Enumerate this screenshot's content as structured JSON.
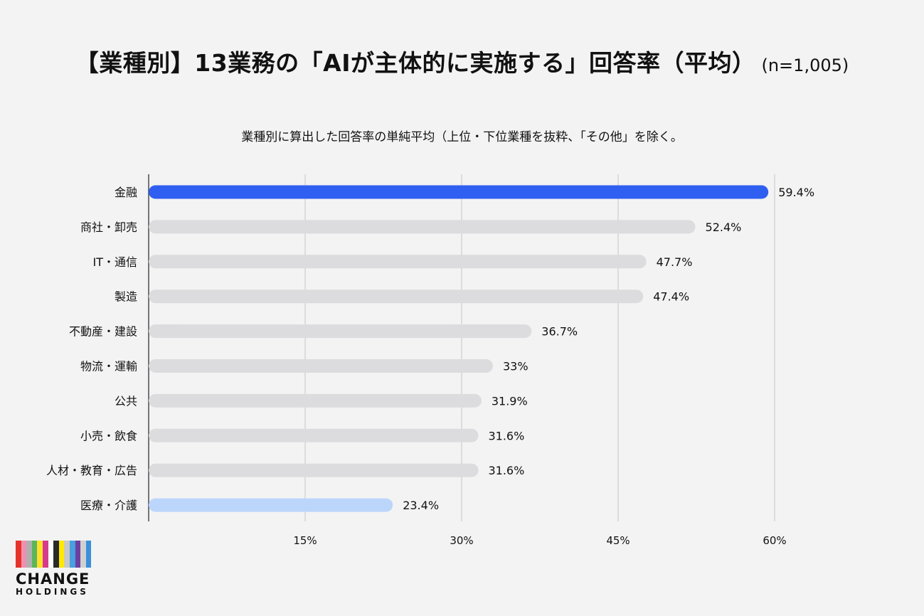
{
  "chart_data": {
    "type": "bar",
    "orientation": "horizontal",
    "title": "【業種別】13業務の「AIが主体的に実施する」回答率（平均）",
    "title_note": "(n=1,005)",
    "subtitle": "業種別に算出した回答率の単純平均（上位・下位業種を抜粋、「その他」を除く。",
    "categories": [
      "金融",
      "商社・卸売",
      "IT・通信",
      "製造",
      "不動産・建設",
      "物流・運輸",
      "公共",
      "小売・飲食",
      "人材・教育・広告",
      "医療・介護"
    ],
    "values": [
      59.4,
      52.4,
      47.7,
      47.4,
      36.7,
      33,
      31.9,
      31.6,
      31.6,
      23.4
    ],
    "value_labels": [
      "59.4%",
      "52.4%",
      "47.7%",
      "47.4%",
      "36.7%",
      "33%",
      "31.9%",
      "31.6%",
      "31.6%",
      "23.4%"
    ],
    "bar_colors": [
      "#2f5ff0",
      "#dcdcdf",
      "#dcdcdf",
      "#dcdcdf",
      "#dcdcdf",
      "#dcdcdf",
      "#dcdcdf",
      "#dcdcdf",
      "#dcdcdf",
      "#bcd6fb"
    ],
    "xlim": [
      0,
      60
    ],
    "xticks": [
      15,
      30,
      45,
      60
    ],
    "xtick_labels": [
      "15%",
      "30%",
      "45%",
      "60%"
    ],
    "grid": true,
    "xlabel": "",
    "ylabel": ""
  },
  "logo": {
    "line1": "CHANGE",
    "line2": "HOLDINGS",
    "stripe_colors": [
      "#e63329",
      "#f08fb0",
      "#b0b0b0",
      "#5bb65a",
      "#ffdf2a",
      "#d43b8d",
      "#ffffff",
      "#2a2a2a",
      "#ffe900",
      "#c8c8c8",
      "#4a9fe0",
      "#6c3fa0",
      "#d0d0d0",
      "#3b8fd9",
      "#f3f3f3"
    ]
  }
}
